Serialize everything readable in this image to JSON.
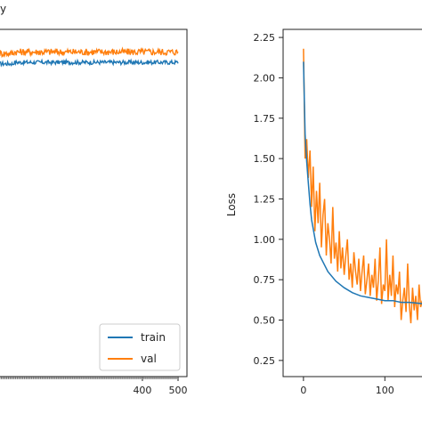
{
  "colors": {
    "train": "#1f77b4",
    "val": "#ff7f0e",
    "axis": "#222222",
    "background": "#ffffff"
  },
  "chart_data": [
    {
      "type": "line",
      "title": "",
      "ylabel_fragment": "y",
      "xlabel": "",
      "xlim": [
        -2,
        525
      ],
      "ylim": [
        0.0,
        1.0
      ],
      "xticks": [
        400,
        500
      ],
      "xtick_labels": [
        "400",
        "500"
      ],
      "legend": {
        "placement": "bottom-right",
        "entries": [
          "train",
          "val"
        ]
      },
      "grid": false,
      "series": [
        {
          "name": "train",
          "color": "#1f77b4",
          "x_start": 0,
          "x_end": 500,
          "approx_level": 0.905,
          "noise": 0.006
        },
        {
          "name": "val",
          "color": "#ff7f0e",
          "x_start": 0,
          "x_end": 500,
          "approx_level": 0.935,
          "noise": 0.01
        }
      ]
    },
    {
      "type": "line",
      "title": "",
      "xlabel": "",
      "ylabel": "Loss",
      "xlim": [
        -25,
        150
      ],
      "ylim": [
        0.15,
        2.3
      ],
      "xticks": [
        0,
        100
      ],
      "xtick_labels": [
        "0",
        "100"
      ],
      "yticks": [
        0.25,
        0.5,
        0.75,
        1.0,
        1.25,
        1.5,
        1.75,
        2.0,
        2.25
      ],
      "ytick_labels": [
        "0.25",
        "0.50",
        "0.75",
        "1.00",
        "1.25",
        "1.50",
        "1.75",
        "2.00",
        "2.25"
      ],
      "grid": false,
      "series": [
        {
          "name": "train",
          "color": "#1f77b4",
          "x": [
            0,
            2,
            4,
            6,
            8,
            10,
            15,
            20,
            30,
            40,
            50,
            60,
            70,
            80,
            90,
            100,
            110,
            120,
            130,
            150
          ],
          "y": [
            2.1,
            1.65,
            1.48,
            1.35,
            1.22,
            1.12,
            0.98,
            0.9,
            0.8,
            0.74,
            0.7,
            0.67,
            0.65,
            0.64,
            0.63,
            0.62,
            0.62,
            0.61,
            0.61,
            0.6
          ]
        },
        {
          "name": "val",
          "color": "#ff7f0e",
          "x": [
            0,
            2,
            4,
            6,
            8,
            10,
            12,
            14,
            16,
            18,
            20,
            22,
            24,
            26,
            28,
            30,
            32,
            34,
            36,
            38,
            40,
            42,
            44,
            46,
            48,
            50,
            52,
            54,
            56,
            58,
            60,
            62,
            64,
            66,
            68,
            70,
            72,
            74,
            76,
            78,
            80,
            82,
            84,
            86,
            88,
            90,
            92,
            94,
            96,
            98,
            100,
            102,
            104,
            106,
            108,
            110,
            112,
            114,
            116,
            118,
            120,
            122,
            124,
            126,
            128,
            130,
            132,
            134,
            136,
            138,
            140,
            142,
            144,
            146,
            148,
            150
          ],
          "y": [
            2.18,
            1.5,
            1.62,
            1.38,
            1.55,
            1.2,
            1.45,
            1.05,
            1.3,
            1.1,
            1.35,
            0.95,
            1.15,
            1.25,
            0.9,
            1.1,
            1.0,
            0.85,
            1.2,
            0.88,
            0.98,
            0.8,
            1.05,
            0.82,
            0.95,
            0.78,
            0.9,
            1.0,
            0.75,
            0.85,
            0.7,
            0.92,
            0.8,
            0.72,
            0.88,
            0.68,
            0.8,
            0.9,
            0.66,
            0.75,
            0.85,
            0.65,
            0.78,
            0.7,
            0.88,
            0.62,
            0.75,
            0.95,
            0.6,
            0.72,
            0.68,
            1.0,
            0.62,
            0.78,
            0.65,
            0.9,
            0.58,
            0.72,
            0.66,
            0.8,
            0.5,
            0.62,
            0.7,
            0.55,
            0.85,
            0.6,
            0.48,
            0.7,
            0.56,
            0.65,
            0.5,
            0.72,
            0.58,
            0.62,
            0.55,
            0.6
          ]
        }
      ]
    }
  ]
}
